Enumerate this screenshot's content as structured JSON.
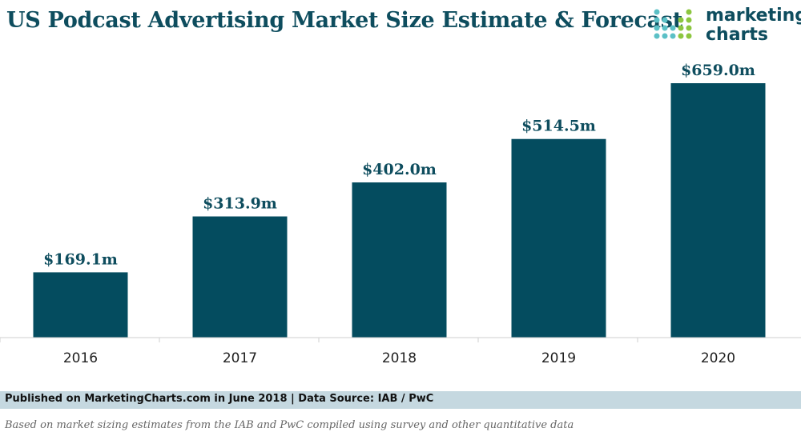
{
  "title": "US Podcast Advertising Market Size Estimate & Forecast",
  "logo": {
    "line1": "marketing",
    "line2": "charts"
  },
  "footer": {
    "published": "Published on MarketingCharts.com in June 2018 | Data Source: IAB / PwC",
    "note": "Based on market sizing estimates from the IAB and PwC compiled using survey and other quantitative data"
  },
  "colors": {
    "bar": "#044c5f",
    "title": "#0e4d5e",
    "footer_band": "#c5d8e0"
  },
  "chart_data": {
    "type": "bar",
    "title": "US Podcast Advertising Market Size Estimate & Forecast",
    "categories": [
      "2016",
      "2017",
      "2018",
      "2019",
      "2020"
    ],
    "values": [
      169.1,
      313.9,
      402.0,
      514.5,
      659.0
    ],
    "labels": [
      "$169.1m",
      "$313.9m",
      "$402.0m",
      "$514.5m",
      "$659.0m"
    ],
    "xlabel": "",
    "ylabel": "",
    "ylim": [
      0,
      659.0
    ],
    "grid": false,
    "legend": "none"
  }
}
